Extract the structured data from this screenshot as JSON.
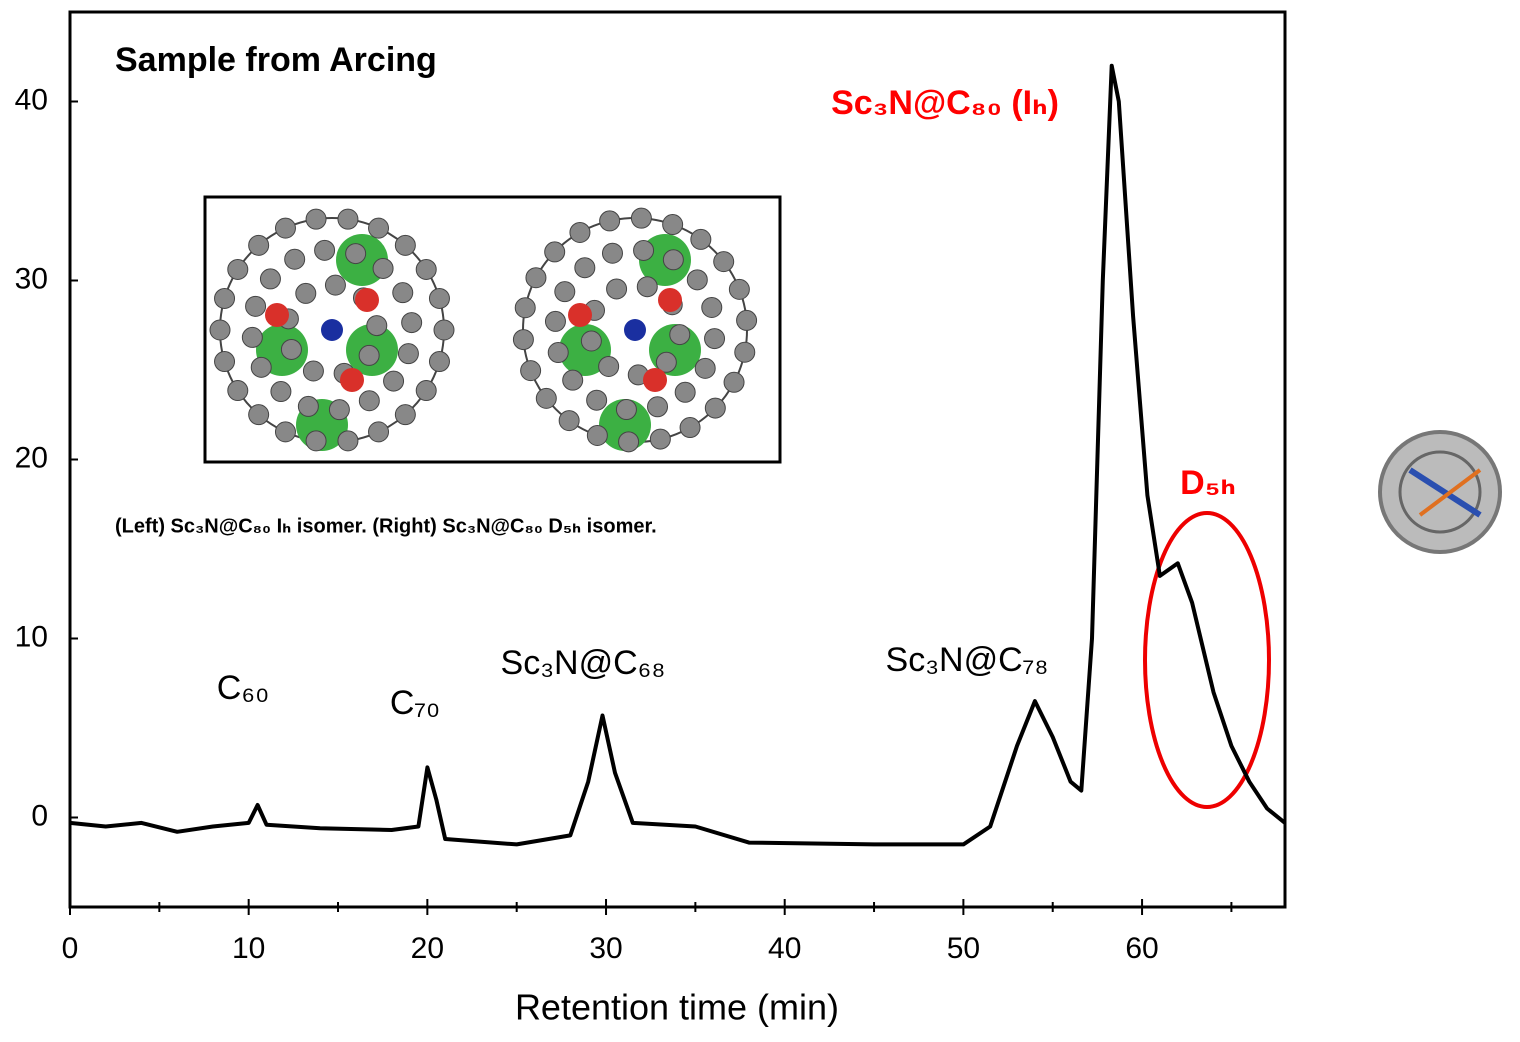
{
  "chart_data": {
    "type": "line",
    "title": "Sample from Arcing",
    "x_label": "Retention time (min)",
    "xlim": [
      0,
      68
    ],
    "ylim": [
      -5,
      45
    ],
    "xticks": [
      0,
      10,
      20,
      30,
      40,
      50,
      60
    ],
    "xticks_minor": [
      5,
      15,
      25,
      35,
      45,
      55,
      65
    ],
    "yticks": [
      0,
      10,
      20,
      30,
      40
    ],
    "series": [
      {
        "color": "#000000",
        "x": [
          0,
          2,
          4,
          6,
          8,
          10,
          10.5,
          11,
          14,
          18,
          19.5,
          20,
          20.5,
          21,
          25,
          28,
          29,
          29.8,
          30.5,
          31.5,
          35,
          38,
          45,
          50,
          51.5,
          53,
          54,
          55,
          56,
          56.6,
          57.2,
          57.8,
          58.3,
          58.7,
          59.5,
          60.3,
          61,
          62,
          62.8,
          64,
          65,
          66,
          67,
          68
        ],
        "values": [
          -0.3,
          -0.5,
          -0.3,
          -0.8,
          -0.5,
          -0.3,
          0.7,
          -0.4,
          -0.6,
          -0.7,
          -0.5,
          2.8,
          1.0,
          -1.2,
          -1.5,
          -1.0,
          2,
          5.7,
          2.5,
          -0.3,
          -0.5,
          -1.4,
          -1.5,
          -1.5,
          -0.5,
          4,
          6.5,
          4.5,
          2,
          1.5,
          10,
          30,
          42,
          40,
          28,
          18,
          13.5,
          14.2,
          12,
          7,
          4,
          2,
          0.5,
          -0.3
        ]
      }
    ],
    "annotations": [
      "C₆₀",
      "C₇₀",
      "Sc₃N@C₆₈",
      "Sc₃N@C₇₈",
      "Sc₃N@C₈₀ (Iₕ)",
      "D₅ₕ",
      "(Left) Sc₃N@C₈₀ Iₕ isomer. (Right) Sc₃N@C₈₀ D₅ₕ isomer."
    ]
  }
}
